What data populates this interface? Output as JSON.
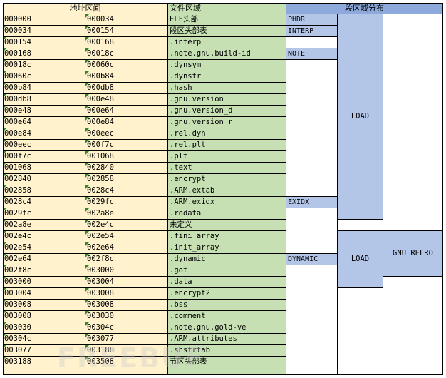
{
  "headers": {
    "address": "地址区间",
    "file_region": "文件区域",
    "segment_distribution": "段区域分布"
  },
  "rows": [
    {
      "start": "000000",
      "end": "000034",
      "region": "ELF头部"
    },
    {
      "start": "000034",
      "end": "000154",
      "region": "段区头部表"
    },
    {
      "start": "000154",
      "end": "000168",
      "region": ".interp"
    },
    {
      "start": "000168",
      "end": "00018c",
      "region": ".note.gnu.build-id"
    },
    {
      "start": "00018c",
      "end": "00060c",
      "region": ".dynsym"
    },
    {
      "start": "00060c",
      "end": "000b84",
      "region": ".dynstr"
    },
    {
      "start": "000b84",
      "end": "000db8",
      "region": ".hash"
    },
    {
      "start": "000db8",
      "end": "000e48",
      "region": ".gnu.version"
    },
    {
      "start": "000e48",
      "end": "000e64",
      "region": ".gnu.version_d"
    },
    {
      "start": "000e64",
      "end": "000e84",
      "region": ".gnu.version_r"
    },
    {
      "start": "000e84",
      "end": "000eec",
      "region": ".rel.dyn"
    },
    {
      "start": "000eec",
      "end": "000f7c",
      "region": ".rel.plt"
    },
    {
      "start": "000f7c",
      "end": "001068",
      "region": ".plt"
    },
    {
      "start": "001068",
      "end": "002840",
      "region": ".text"
    },
    {
      "start": "002840",
      "end": "002858",
      "region": ".encrypt"
    },
    {
      "start": "002858",
      "end": "0028c4",
      "region": ".ARM.extab"
    },
    {
      "start": "0028c4",
      "end": "0029fc",
      "region": ".ARM.exidx"
    },
    {
      "start": "0029fc",
      "end": "002a8e",
      "region": ".rodata"
    },
    {
      "start": "002a8e",
      "end": "002e4c",
      "region": "未定义"
    },
    {
      "start": "002e4c",
      "end": "002e54",
      "region": ".fini_array"
    },
    {
      "start": "002e54",
      "end": "002e64",
      "region": ".init_array"
    },
    {
      "start": "002e64",
      "end": "002f8c",
      "region": ".dynamic"
    },
    {
      "start": "002f8c",
      "end": "003000",
      "region": ".got"
    },
    {
      "start": "003000",
      "end": "003004",
      "region": ".data"
    },
    {
      "start": "003004",
      "end": "003008",
      "region": ".encrypt2"
    },
    {
      "start": "003008",
      "end": "003008",
      "region": ".bss"
    },
    {
      "start": "003008",
      "end": "003030",
      "region": ".comment"
    },
    {
      "start": "003030",
      "end": "00304c",
      "region": ".note.gnu.gold-ve"
    },
    {
      "start": "00304c",
      "end": "003077",
      "region": ".ARM.attributes"
    },
    {
      "start": "003077",
      "end": "003188",
      "region": ".shstrtab"
    },
    {
      "start": "003188",
      "end": "003508",
      "region": "节区头部表"
    }
  ],
  "segments": {
    "phdr": "PHDR",
    "interp": "INTERP",
    "note": "NOTE",
    "exidx": "EXIDX",
    "dynamic": "DYNAMIC",
    "load1": "LOAD",
    "load2": "LOAD",
    "gnu_relro": "GNU_RELRO"
  },
  "colors": {
    "address_fill": "#fff2cc",
    "file_fill": "#c6e0b4",
    "segment_fill": "#b4c6e7",
    "segment_header_fill": "#8ea9db"
  }
}
